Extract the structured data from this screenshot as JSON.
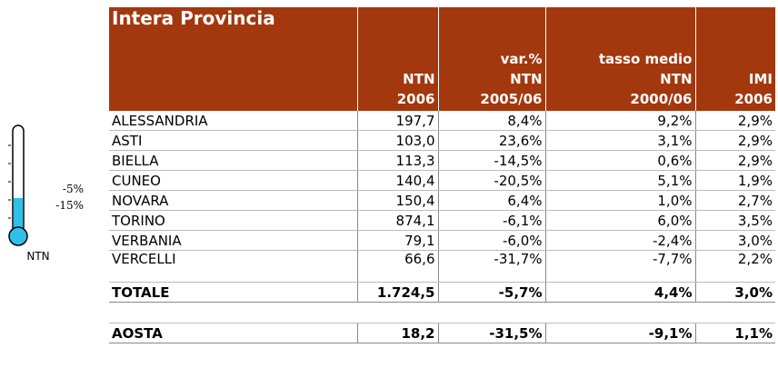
{
  "legend": {
    "labels": [
      "-5%",
      "-15%"
    ],
    "caption": "NTN"
  },
  "table": {
    "title": "Intera Provincia",
    "headers": [
      [
        "NTN",
        "2006"
      ],
      [
        "var.%",
        "NTN",
        "2005/06"
      ],
      [
        "tasso medio",
        "NTN",
        "2000/06"
      ],
      [
        "IMI",
        "2006"
      ]
    ],
    "rows": [
      [
        "ALESSANDRIA",
        "197,7",
        "8,4%",
        "9,2%",
        "2,9%"
      ],
      [
        "ASTI",
        "103,0",
        "23,6%",
        "3,1%",
        "2,9%"
      ],
      [
        "BIELLA",
        "113,3",
        "-14,5%",
        "0,6%",
        "2,9%"
      ],
      [
        "CUNEO",
        "140,4",
        "-20,5%",
        "5,1%",
        "1,9%"
      ],
      [
        "NOVARA",
        "150,4",
        "6,4%",
        "1,0%",
        "2,7%"
      ],
      [
        "TORINO",
        "874,1",
        "-6,1%",
        "6,0%",
        "3,5%"
      ],
      [
        "VERBANIA",
        "79,1",
        "-6,0%",
        "-2,4%",
        "3,0%"
      ],
      [
        "VERCELLI",
        "66,6",
        "-31,7%",
        "-7,7%",
        "2,2%"
      ]
    ],
    "total": [
      "TOTALE",
      "1.724,5",
      "-5,7%",
      "4,4%",
      "3,0%"
    ],
    "extra": [
      "AOSTA",
      "18,2",
      "-31,5%",
      "-9,1%",
      "1,1%"
    ]
  }
}
